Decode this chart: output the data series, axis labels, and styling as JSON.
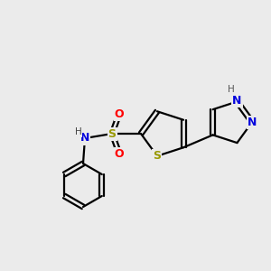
{
  "background_color": "#ebebeb",
  "figsize": [
    3.0,
    3.0
  ],
  "dpi": 100,
  "colors": {
    "bond": "#000000",
    "S": "#999900",
    "N": "#0000dd",
    "O": "#ff0000",
    "H_gray": "#666666"
  }
}
